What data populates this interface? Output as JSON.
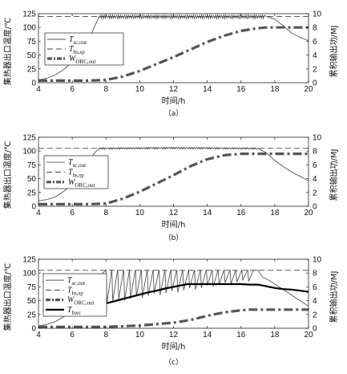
{
  "chart_data": [
    {
      "panel": "a",
      "type": "line",
      "caption": "（a）",
      "xlabel": "时间/h",
      "ylabel_left": "集热器出口温度/℃",
      "ylabel_right": "累积输出功/MJ",
      "xlim": [
        4,
        20
      ],
      "ylim_left": [
        0,
        125
      ],
      "ylim_right": [
        0,
        10
      ],
      "xticks": [
        "4",
        "6",
        "8",
        "10",
        "12",
        "14",
        "16",
        "18",
        "20"
      ],
      "yticks_left": [
        "0",
        "25",
        "50",
        "75",
        "100",
        "125"
      ],
      "yticks_right": [
        "0",
        "2",
        "4",
        "6",
        "8",
        "10"
      ],
      "legend": [
        {
          "key": "Tsc",
          "label": "T",
          "sub": "sc,out"
        },
        {
          "key": "Ths",
          "label": "T",
          "sub": "hs,sp"
        },
        {
          "key": "W",
          "label": "W",
          "sub": "ORC,out"
        }
      ],
      "series": [
        {
          "key": "Tsc",
          "axis": "left",
          "style": "thin",
          "x": [
            4,
            4.5,
            5,
            5.5,
            6,
            6.5,
            7,
            7.3,
            7.6,
            8,
            12,
            16,
            17.5,
            18,
            18.5,
            19,
            19.5,
            20
          ],
          "y": [
            5,
            8,
            14,
            24,
            38,
            55,
            78,
            100,
            120,
            120,
            120,
            120,
            120,
            115,
            103,
            90,
            82,
            76
          ],
          "oscillate": [
            [
              7.6,
              17.4,
              0.12,
              4
            ]
          ]
        },
        {
          "key": "Ths",
          "axis": "left",
          "style": "dashed",
          "x": [
            4,
            20
          ],
          "y": [
            120,
            120
          ]
        },
        {
          "key": "W",
          "axis": "right",
          "style": "thick-dashdot",
          "x": [
            4,
            7,
            8,
            9,
            10,
            11,
            12,
            13,
            14,
            15,
            16,
            17,
            17.5,
            18,
            19,
            20
          ],
          "y": [
            0.3,
            0.3,
            0.4,
            0.9,
            1.7,
            2.7,
            3.7,
            4.8,
            5.9,
            6.8,
            7.5,
            7.9,
            8.0,
            8.0,
            8.0,
            8.0
          ]
        }
      ]
    },
    {
      "panel": "b",
      "type": "line",
      "caption": "（b）",
      "xlabel": "时间/h",
      "ylabel_left": "集热器出口温度/℃",
      "ylabel_right": "累积输出功/MJ",
      "xlim": [
        4,
        20
      ],
      "ylim_left": [
        0,
        125
      ],
      "ylim_right": [
        0,
        10
      ],
      "xticks": [
        "4",
        "6",
        "8",
        "10",
        "12",
        "14",
        "16",
        "18",
        "20"
      ],
      "yticks_left": [
        "0",
        "25",
        "50",
        "75",
        "100",
        "125"
      ],
      "yticks_right": [
        "0",
        "2",
        "4",
        "6",
        "8",
        "10"
      ],
      "legend": [
        {
          "key": "Tsc",
          "label": "T",
          "sub": "sc,out"
        },
        {
          "key": "Ths",
          "label": "T",
          "sub": "hs,sp"
        },
        {
          "key": "W",
          "label": "W",
          "sub": "ORC,out"
        }
      ],
      "series": [
        {
          "key": "Tsc",
          "axis": "left",
          "style": "thin",
          "x": [
            4,
            4.5,
            5,
            5.5,
            6,
            6.5,
            7,
            7.3,
            7.6,
            8,
            12,
            16,
            17,
            17.5,
            18,
            18.5,
            19,
            19.5,
            20
          ],
          "y": [
            10,
            12,
            17,
            27,
            40,
            57,
            80,
            96,
            105,
            105,
            106,
            105,
            105,
            97,
            83,
            72,
            62,
            54,
            46
          ],
          "oscillate": [
            [
              7.6,
              16.9,
              0.15,
              2
            ]
          ]
        },
        {
          "key": "Ths",
          "axis": "left",
          "style": "dashed",
          "x": [
            4,
            20
          ],
          "y": [
            105,
            105
          ]
        },
        {
          "key": "W",
          "axis": "right",
          "style": "thick-dashdot",
          "x": [
            4,
            7,
            8,
            9,
            10,
            11,
            12,
            13,
            14,
            15,
            16,
            17,
            18,
            19,
            20
          ],
          "y": [
            0.3,
            0.3,
            0.4,
            1.1,
            2.1,
            3.3,
            4.5,
            5.8,
            6.8,
            7.4,
            7.6,
            7.6,
            7.6,
            7.6,
            7.6
          ]
        }
      ]
    },
    {
      "panel": "c",
      "type": "line",
      "caption": "（c）",
      "xlabel": "时间/h",
      "ylabel_left": "集热器出口温度/℃",
      "ylabel_right": "累积输出功/MJ",
      "xlim": [
        4,
        20
      ],
      "ylim_left": [
        0,
        125
      ],
      "ylim_right": [
        0,
        10
      ],
      "xticks": [
        "4",
        "6",
        "8",
        "10",
        "12",
        "14",
        "16",
        "18",
        "20"
      ],
      "yticks_left": [
        "0",
        "25",
        "50",
        "75",
        "100",
        "125"
      ],
      "yticks_right": [
        "0",
        "2",
        "4",
        "6",
        "8",
        "10"
      ],
      "legend": [
        {
          "key": "Tsc",
          "label": "T",
          "sub": "sc,out"
        },
        {
          "key": "Ths",
          "label": "T",
          "sub": "hs,sp"
        },
        {
          "key": "W",
          "label": "W",
          "sub": "ORC,out"
        },
        {
          "key": "Thwc",
          "label": "T",
          "sub": "hwc"
        }
      ],
      "series": [
        {
          "key": "Tsc",
          "axis": "left",
          "style": "thin",
          "x": [
            4,
            4.5,
            5,
            5.5,
            6,
            6.5,
            7,
            7.5,
            7.8,
            8.0,
            17,
            17.3,
            17.6,
            18,
            18.5,
            19,
            19.5,
            20
          ],
          "y": [
            4,
            7,
            12,
            21,
            34,
            50,
            70,
            90,
            100,
            105,
            105,
            92,
            88,
            80,
            70,
            60,
            50,
            40
          ],
          "sawtooth": [
            [
              8.0,
              16.9,
              0.35,
              105,
              45,
              85
            ]
          ]
        },
        {
          "key": "Ths",
          "axis": "left",
          "style": "dashed",
          "x": [
            4,
            20
          ],
          "y": [
            105,
            105
          ]
        },
        {
          "key": "Thwc",
          "axis": "left",
          "style": "thick",
          "x": [
            8,
            8.5,
            9,
            9.5,
            10,
            10.5,
            11,
            11.5,
            12,
            12.5,
            12.8,
            14,
            15,
            16,
            16.5,
            17,
            17.5,
            18,
            18.5,
            19,
            19.5,
            20
          ],
          "y": [
            45,
            49,
            53,
            57,
            61,
            65,
            68,
            72,
            75,
            78,
            80,
            80,
            80,
            80,
            79,
            79,
            76,
            73,
            71,
            70,
            68,
            66
          ]
        },
        {
          "key": "W",
          "axis": "right",
          "style": "thick-dashdot",
          "x": [
            4,
            8,
            10,
            12,
            13,
            14,
            15,
            16,
            16.5,
            17,
            18,
            19,
            20
          ],
          "y": [
            0.2,
            0.2,
            0.4,
            0.8,
            1.2,
            1.8,
            2.3,
            2.6,
            2.7,
            2.7,
            2.7,
            2.7,
            2.7
          ]
        }
      ]
    }
  ]
}
